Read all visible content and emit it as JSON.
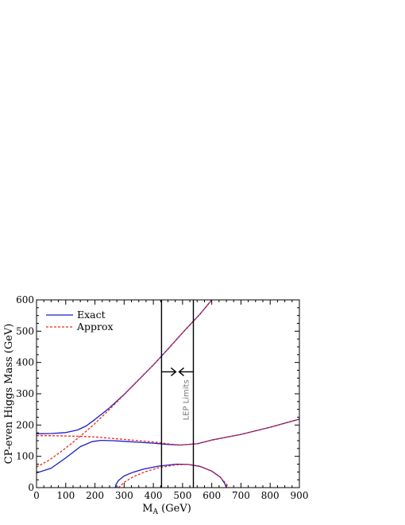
{
  "chart_data": {
    "type": "line",
    "xlabel_main": "M",
    "xlabel_sub": "A",
    "xlabel_rest": " (GeV)",
    "ylabel": "CP-even Higgs Mass (GeV)",
    "xlim": [
      0,
      900
    ],
    "ylim": [
      0,
      600
    ],
    "xticks": [
      0,
      100,
      200,
      300,
      400,
      500,
      600,
      700,
      800,
      900
    ],
    "yticks": [
      0,
      100,
      200,
      300,
      400,
      500,
      600
    ],
    "grid": false,
    "legend": {
      "placement": "top-left",
      "entries": [
        {
          "label": "Exact",
          "color": "#1a1acc",
          "style": "solid"
        },
        {
          "label": "Approx",
          "color": "#ee2a1a",
          "style": "dashed"
        }
      ]
    },
    "annotations": {
      "lep_label": "LEP Limits",
      "lep_bounds": [
        428,
        537
      ],
      "arrow_y": 370
    },
    "series": [
      {
        "id": "exact_upper",
        "color": "#1a1acc",
        "style": "solid",
        "x": [
          0,
          50,
          100,
          140,
          170,
          200,
          250,
          300,
          350,
          400,
          450,
          500,
          540,
          560,
          600
        ],
        "y": [
          172,
          173,
          176,
          184,
          197,
          218,
          255,
          298,
          345,
          392,
          443,
          495,
          535,
          555,
          600
        ]
      },
      {
        "id": "approx_upper",
        "color": "#ee2a1a",
        "style": "dashed",
        "x": [
          0,
          40,
          80,
          120,
          160,
          200,
          250,
          300,
          350,
          400,
          450,
          500,
          540,
          560,
          600
        ],
        "y": [
          66,
          86,
          112,
          141,
          172,
          205,
          250,
          297,
          344,
          392,
          443,
          495,
          535,
          555,
          600
        ]
      },
      {
        "id": "exact_middle",
        "color": "#1a1acc",
        "style": "solid",
        "x": [
          0,
          50,
          100,
          150,
          190,
          220,
          260,
          300,
          350,
          400,
          450,
          490,
          550,
          600,
          700,
          800,
          900
        ],
        "y": [
          47,
          62,
          95,
          131,
          147,
          151,
          150,
          148,
          145,
          142,
          138,
          136,
          140,
          152,
          170,
          193,
          219
        ]
      },
      {
        "id": "approx_middle",
        "color": "#ee2a1a",
        "style": "dashed",
        "x": [
          0,
          50,
          100,
          150,
          200,
          250,
          300,
          350,
          400,
          450,
          490,
          550,
          600,
          700,
          800,
          900
        ],
        "y": [
          166,
          166,
          165,
          164,
          162,
          158,
          154,
          150,
          146,
          140,
          136,
          140,
          152,
          170,
          193,
          219
        ]
      },
      {
        "id": "exact_lower",
        "color": "#1a1acc",
        "style": "solid",
        "x": [
          270,
          272,
          280,
          300,
          330,
          370,
          420,
          480,
          520,
          560,
          600,
          630,
          645,
          650
        ],
        "y": [
          0,
          10,
          22,
          37,
          49,
          60,
          69,
          75,
          74,
          68,
          53,
          33,
          12,
          0
        ]
      },
      {
        "id": "approx_lower",
        "color": "#ee2a1a",
        "style": "dashed",
        "x": [
          280,
          290,
          300,
          330,
          370,
          420,
          480,
          520,
          560,
          600,
          630,
          650,
          658
        ],
        "y": [
          0,
          8,
          17,
          34,
          50,
          64,
          73,
          74,
          67,
          52,
          32,
          12,
          0
        ]
      }
    ]
  }
}
